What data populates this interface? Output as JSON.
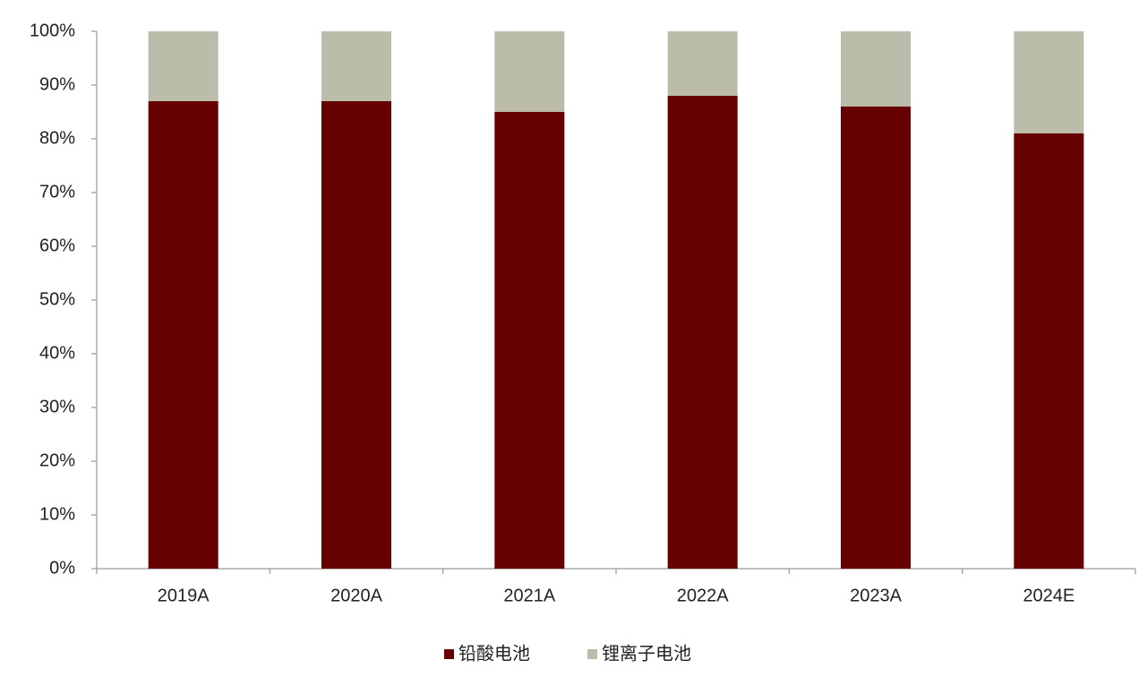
{
  "chart_data": {
    "type": "stacked_bar",
    "categories": [
      "2019A",
      "2020A",
      "2021A",
      "2022A",
      "2023A",
      "2024E"
    ],
    "series": [
      {
        "name": "铅酸电池",
        "color": "#660000",
        "values": [
          87,
          87,
          85,
          88,
          86,
          81
        ]
      },
      {
        "name": "锂离子电池",
        "color": "#bcbcaa",
        "values": [
          13,
          13,
          15,
          12,
          14,
          19
        ]
      }
    ],
    "ylim": [
      0,
      100
    ],
    "yticks": [
      {
        "value": 0,
        "label": "0%"
      },
      {
        "value": 10,
        "label": "10%"
      },
      {
        "value": 20,
        "label": "20%"
      },
      {
        "value": 30,
        "label": "30%"
      },
      {
        "value": 40,
        "label": "40%"
      },
      {
        "value": 50,
        "label": "50%"
      },
      {
        "value": 60,
        "label": "60%"
      },
      {
        "value": 70,
        "label": "70%"
      },
      {
        "value": 80,
        "label": "80%"
      },
      {
        "value": 90,
        "label": "90%"
      },
      {
        "value": 100,
        "label": "100%"
      }
    ],
    "grid": false,
    "legend": "bottom"
  }
}
